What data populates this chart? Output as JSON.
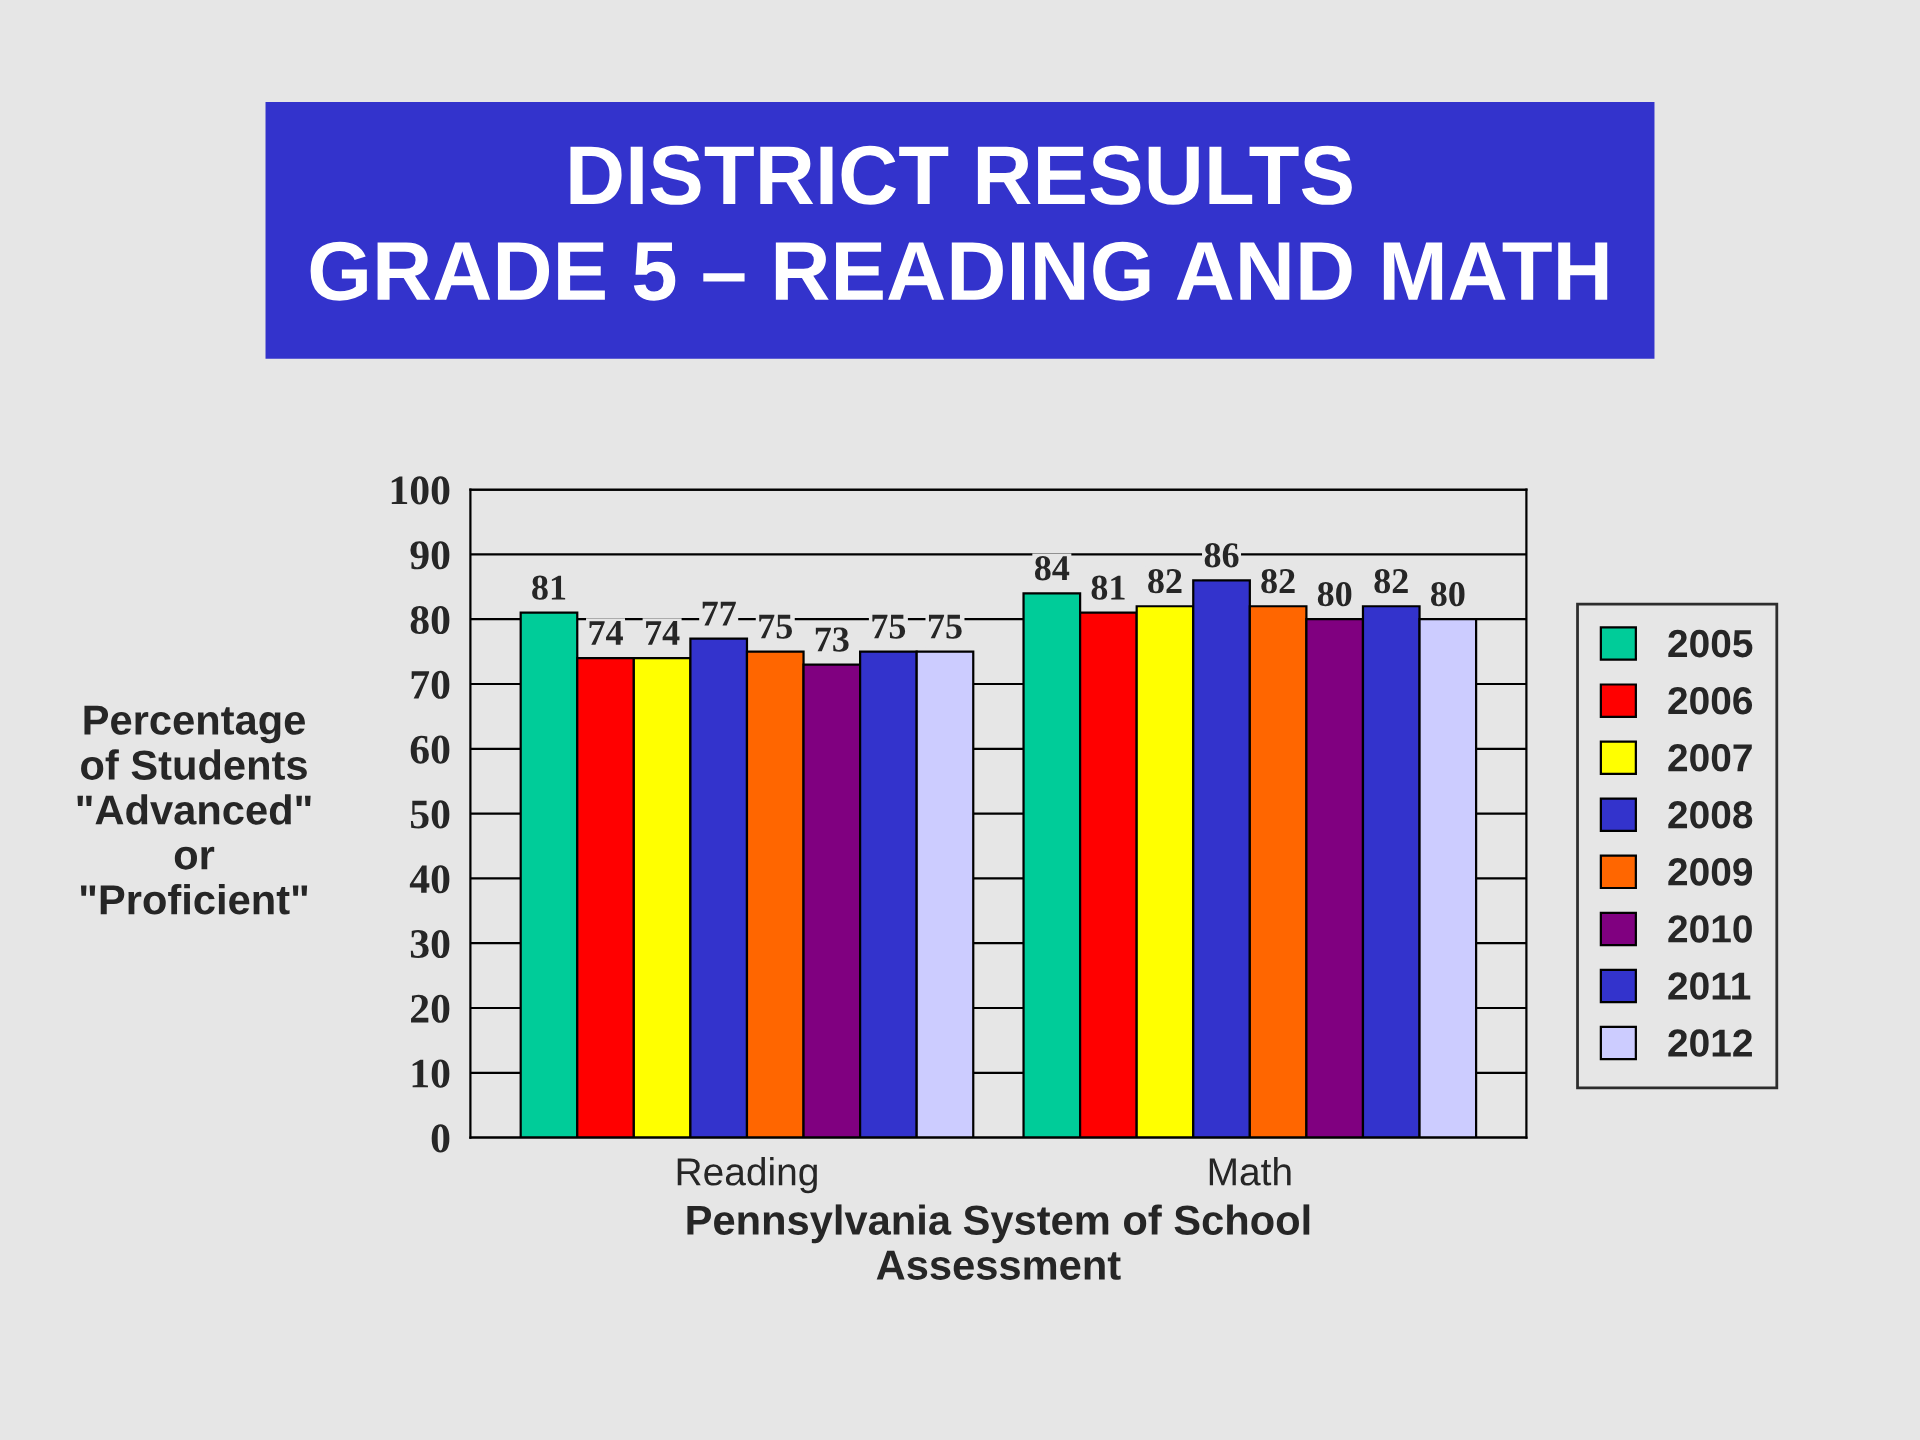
{
  "chart_data": {
    "type": "bar",
    "title": "DISTRICT RESULTS\nGRADE 5 – READING AND MATH",
    "categories": [
      "Reading",
      "Math"
    ],
    "series": [
      {
        "name": "2005",
        "color": "#00cc99",
        "values": [
          81,
          84
        ]
      },
      {
        "name": "2006",
        "color": "#ff0000",
        "values": [
          74,
          81
        ]
      },
      {
        "name": "2007",
        "color": "#ffff00",
        "values": [
          74,
          82
        ]
      },
      {
        "name": "2008",
        "color": "#3333cc",
        "values": [
          77,
          86
        ]
      },
      {
        "name": "2009",
        "color": "#ff6600",
        "values": [
          75,
          82
        ]
      },
      {
        "name": "2010",
        "color": "#800080",
        "values": [
          73,
          80
        ]
      },
      {
        "name": "2011",
        "color": "#3333cc",
        "values": [
          75,
          82
        ]
      },
      {
        "name": "2012",
        "color": "#ccccff",
        "values": [
          75,
          80
        ]
      }
    ],
    "xlabel": "Pennsylvania System of School\nAssessment",
    "ylabel": "Percentage\nof Students\n\"Advanced\"\nor\n\"Proficient\"",
    "ylim": [
      0,
      100
    ],
    "yticks": [
      0,
      10,
      20,
      30,
      40,
      50,
      60,
      70,
      80,
      90,
      100
    ],
    "grid": "y",
    "legend": "right",
    "data_labels": true
  }
}
